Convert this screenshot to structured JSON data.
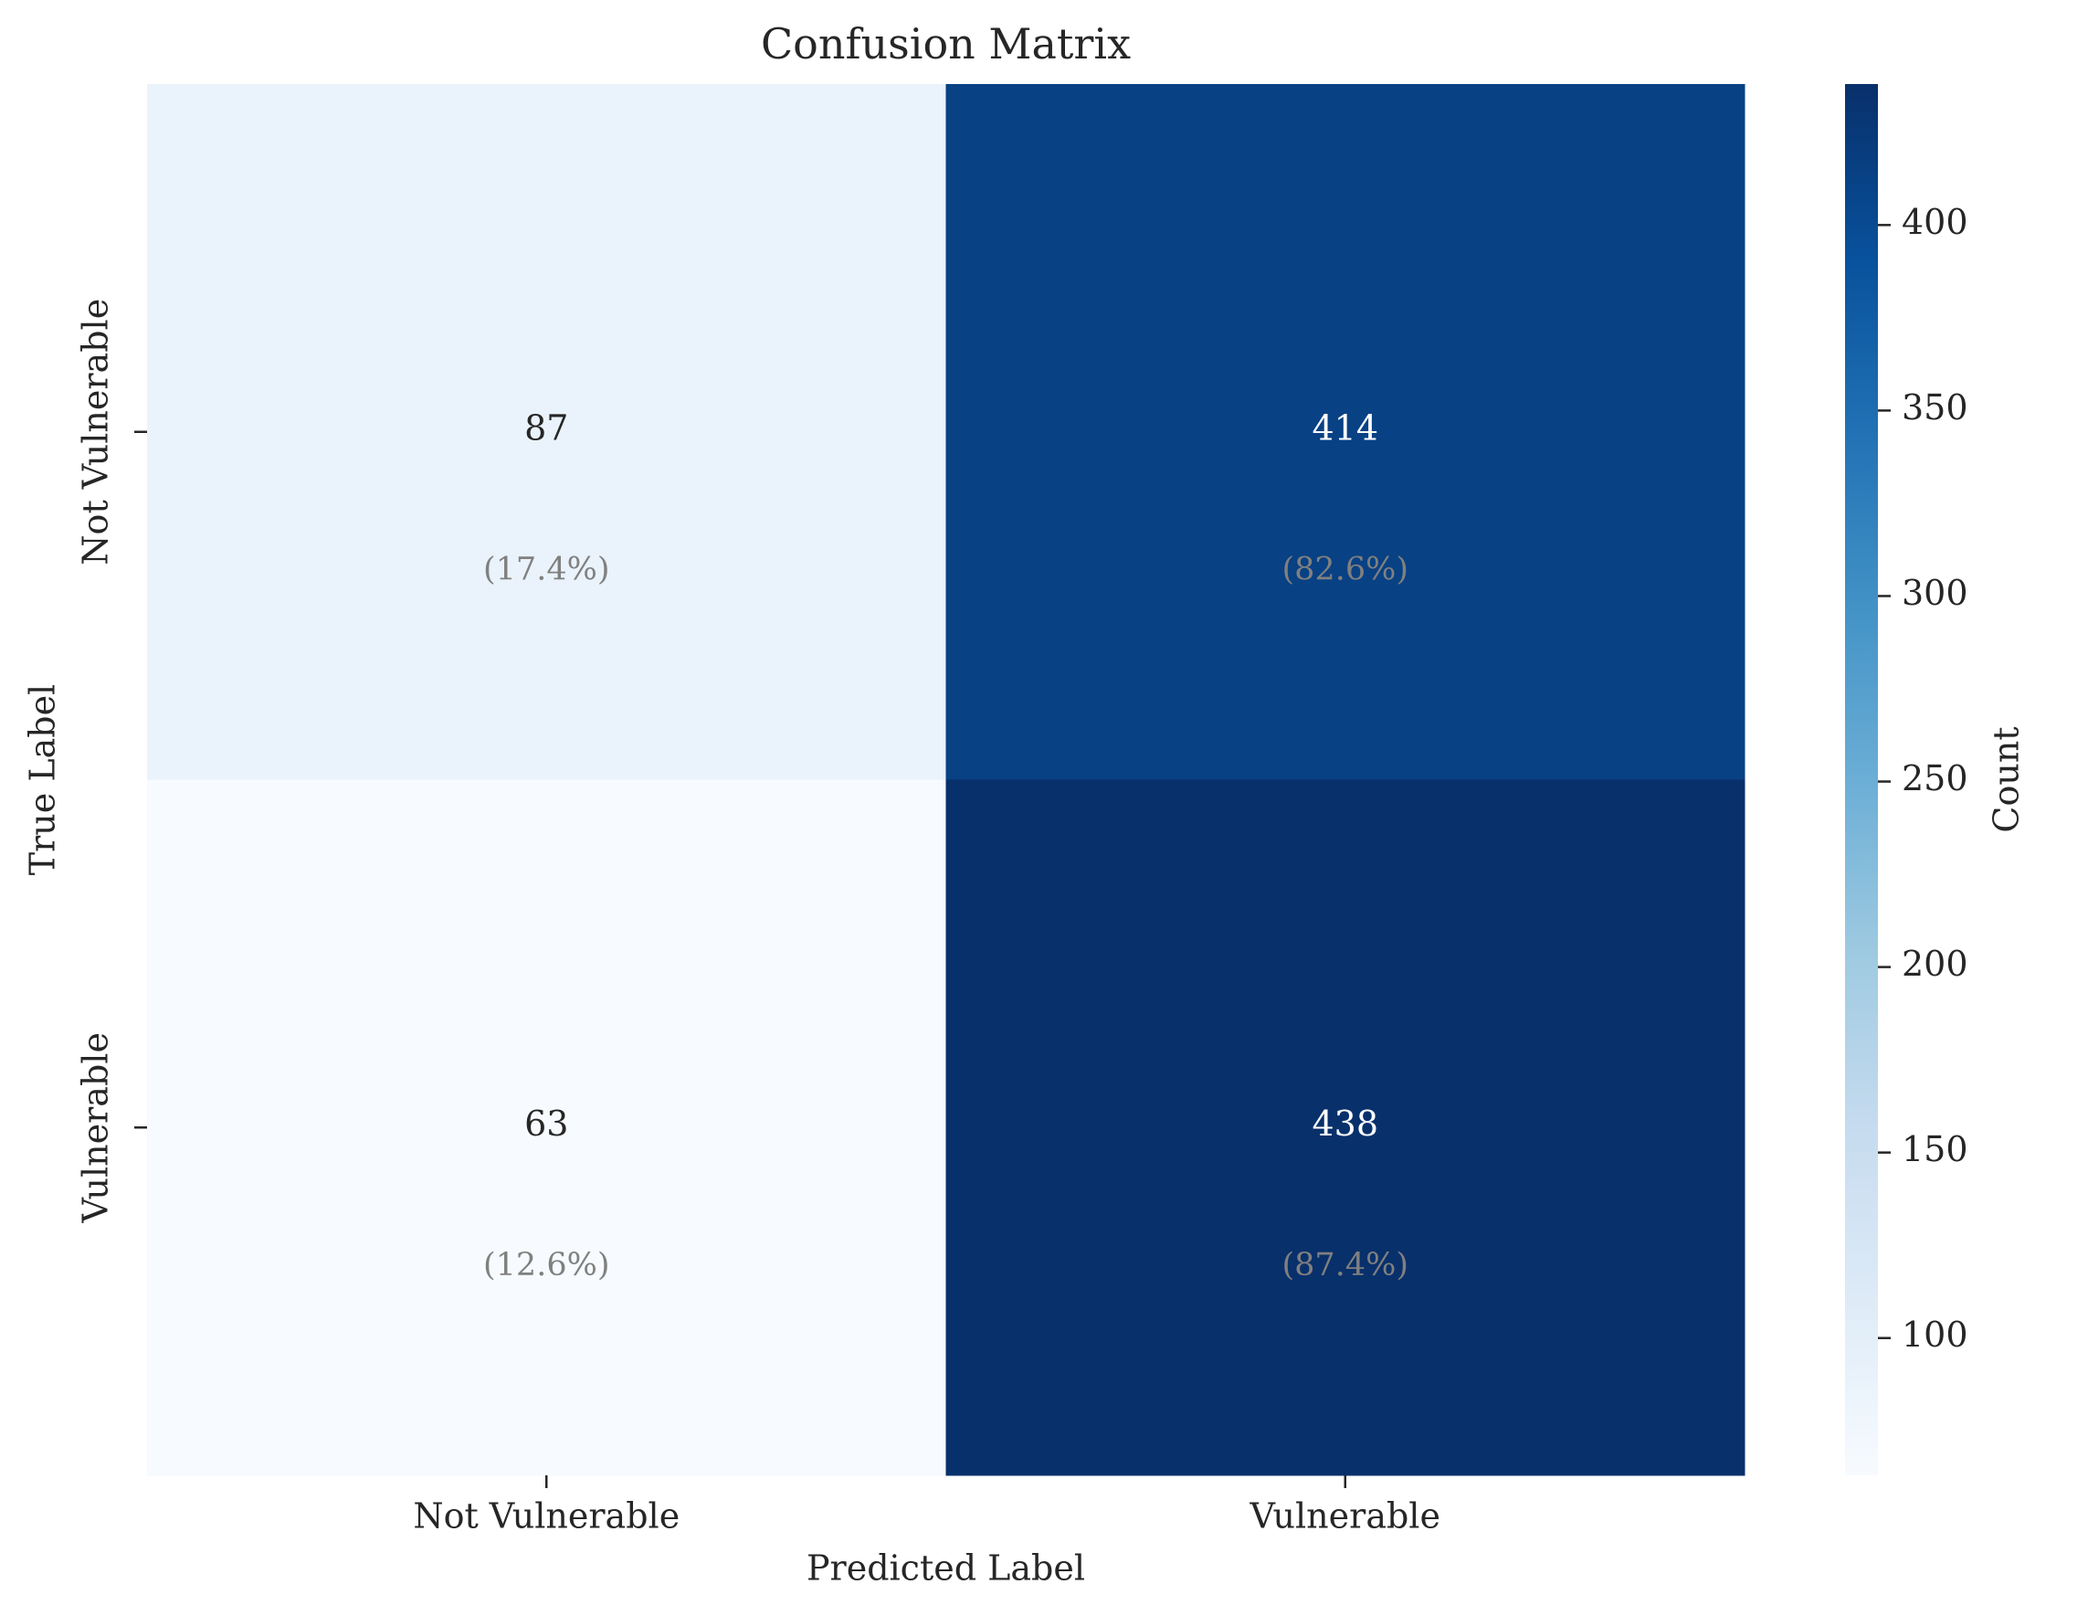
{
  "chart_data": {
    "type": "heatmap",
    "title": "Confusion Matrix",
    "xlabel": "Predicted Label",
    "ylabel": "True Label",
    "x_categories": [
      "Not Vulnerable",
      "Vulnerable"
    ],
    "y_categories": [
      "Not Vulnerable",
      "Vulnerable"
    ],
    "values": [
      [
        87,
        414
      ],
      [
        63,
        438
      ]
    ],
    "cell_percent_labels": [
      [
        "(17.4%)",
        "(82.6%)"
      ],
      [
        "(12.6%)",
        "(87.4%)"
      ]
    ],
    "colormap": "Blues",
    "colorbar": {
      "label": "Count",
      "range": [
        63,
        438
      ],
      "ticks": [
        100,
        150,
        200,
        250,
        300,
        350,
        400
      ]
    },
    "grid": false
  },
  "colors": {
    "text_dark": "#262626",
    "text_light": "#ffffff",
    "percent_text": "#808080",
    "axis": "#262626",
    "colormap_stops": [
      "#f7fbff",
      "#deebf7",
      "#c6dbef",
      "#9ecae1",
      "#6baed6",
      "#4292c6",
      "#2171b5",
      "#08519c",
      "#08306b"
    ]
  }
}
